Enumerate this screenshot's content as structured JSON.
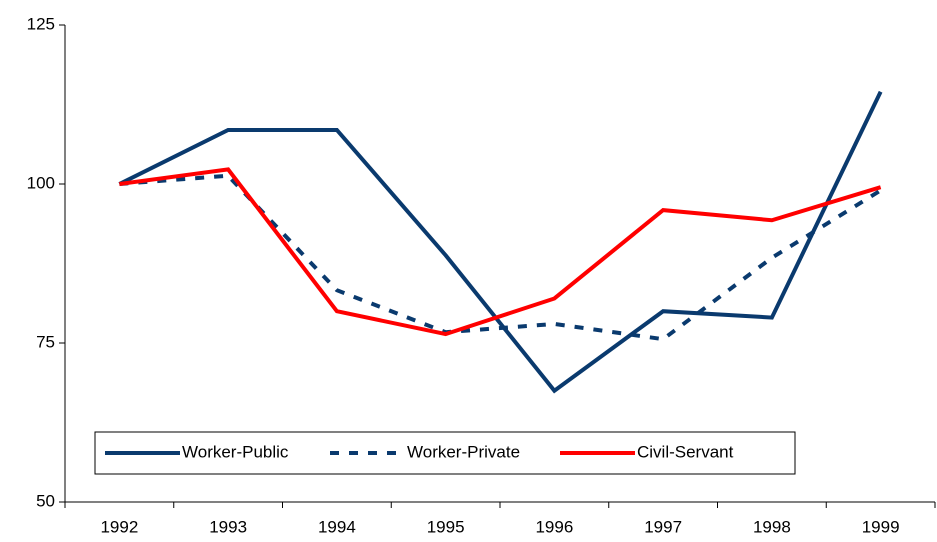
{
  "chart_data": {
    "type": "line",
    "categories": [
      "1992",
      "1993",
      "1994",
      "1995",
      "1996",
      "1997",
      "1998",
      "1999"
    ],
    "series": [
      {
        "name": "Worker-Public",
        "color": "#0a3a6e",
        "dash": false,
        "values": [
          100,
          108.5,
          108.5,
          88.8,
          67.5,
          80,
          79,
          114.5
        ]
      },
      {
        "name": "Worker-Private",
        "color": "#0a3a6e",
        "dash": true,
        "values": [
          100,
          101.3,
          83.3,
          76.7,
          78,
          75.6,
          88.4,
          99
        ]
      },
      {
        "name": "Civil-Servant",
        "color": "#ff0000",
        "dash": false,
        "values": [
          100,
          102.3,
          80,
          76.4,
          82,
          95.9,
          94.3,
          99.5
        ]
      }
    ],
    "ylim": [
      50,
      125
    ],
    "yticks": [
      50,
      75,
      100,
      125
    ],
    "grid": false,
    "legend": "bottom"
  }
}
